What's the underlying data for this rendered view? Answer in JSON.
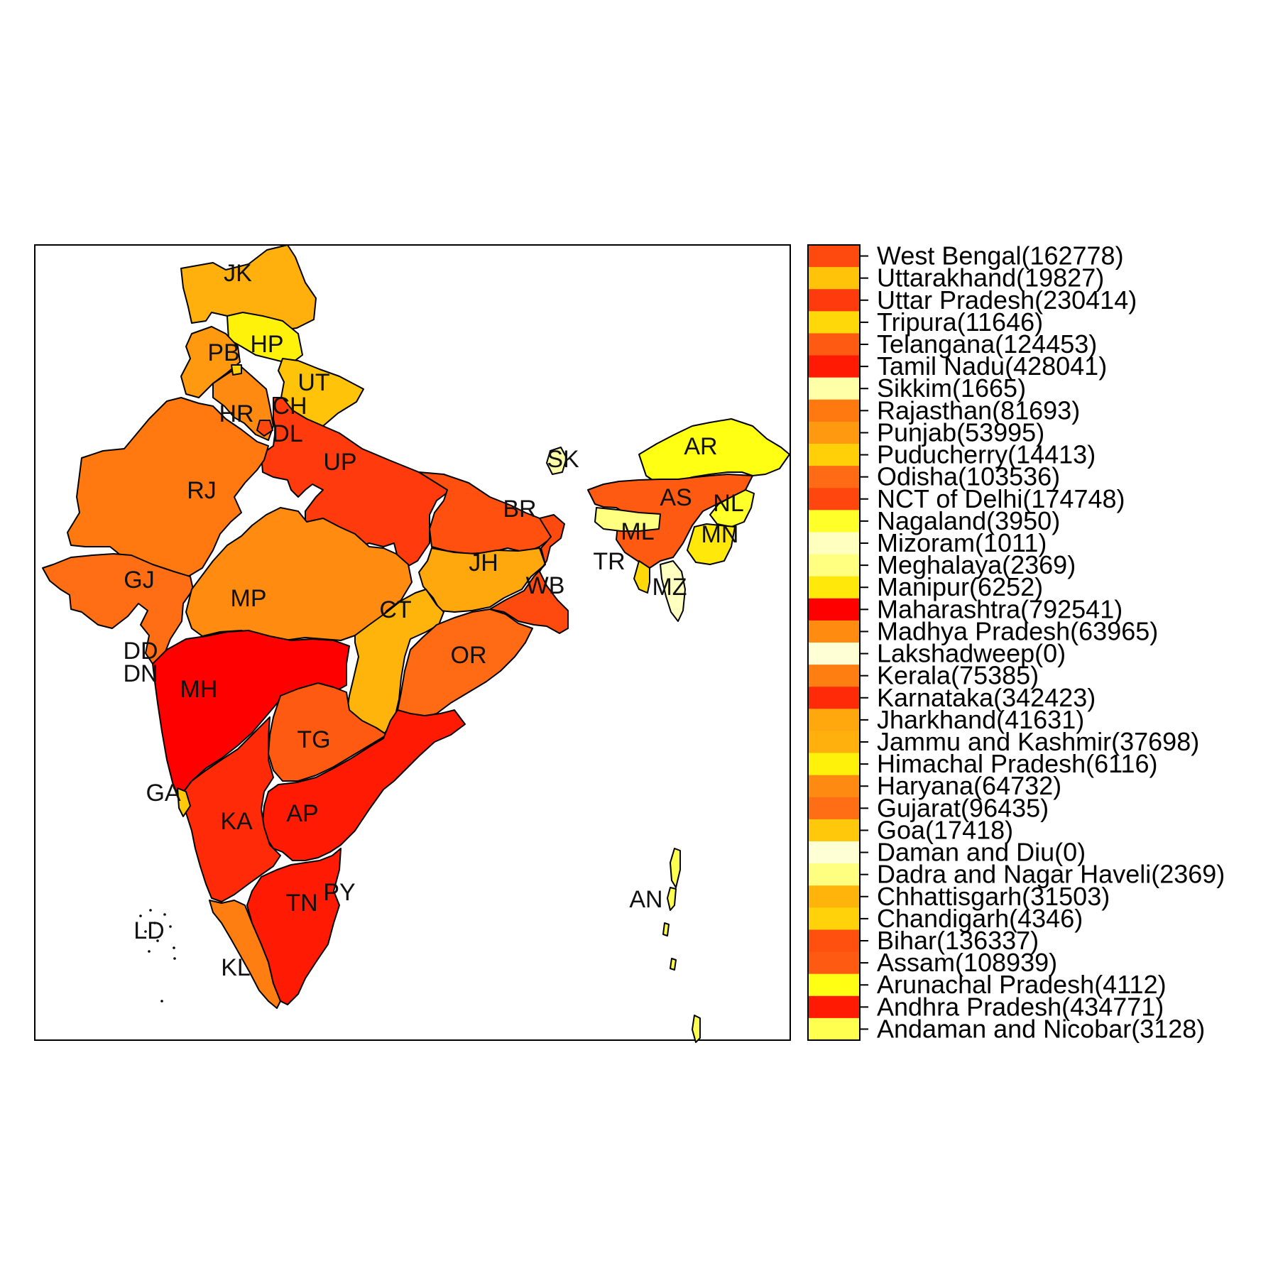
{
  "map": {
    "regions": [
      {
        "id": "WB",
        "name": "West Bengal",
        "value": 162778,
        "color": "#ff4a0f"
      },
      {
        "id": "UT",
        "name": "Uttarakhand",
        "value": 19827,
        "color": "#ffc40a"
      },
      {
        "id": "UP",
        "name": "Uttar Pradesh",
        "value": 230414,
        "color": "#ff3a0c"
      },
      {
        "id": "TR",
        "name": "Tripura",
        "value": 11646,
        "color": "#ffd809"
      },
      {
        "id": "TG",
        "name": "Telangana",
        "value": 124453,
        "color": "#ff5a12"
      },
      {
        "id": "TN",
        "name": "Tamil Nadu",
        "value": 428041,
        "color": "#ff1a04"
      },
      {
        "id": "SK",
        "name": "Sikkim",
        "value": 1665,
        "color": "#ffffa8"
      },
      {
        "id": "RJ",
        "name": "Rajasthan",
        "value": 81693,
        "color": "#ff7810"
      },
      {
        "id": "PB",
        "name": "Punjab",
        "value": 53995,
        "color": "#ff9a10"
      },
      {
        "id": "PY",
        "name": "Puducherry",
        "value": 14413,
        "color": "#ffd008"
      },
      {
        "id": "OR",
        "name": "Odisha",
        "value": 103536,
        "color": "#ff6a14"
      },
      {
        "id": "DL",
        "name": "NCT of Delhi",
        "value": 174748,
        "color": "#ff460e"
      },
      {
        "id": "NL",
        "name": "Nagaland",
        "value": 3950,
        "color": "#ffff2a"
      },
      {
        "id": "MZ",
        "name": "Mizoram",
        "value": 1011,
        "color": "#ffffc0"
      },
      {
        "id": "ML",
        "name": "Meghalaya",
        "value": 2369,
        "color": "#ffff80"
      },
      {
        "id": "MN",
        "name": "Manipur",
        "value": 6252,
        "color": "#ffe80a"
      },
      {
        "id": "MH",
        "name": "Maharashtra",
        "value": 792541,
        "color": "#ff0000"
      },
      {
        "id": "MP",
        "name": "Madhya Pradesh",
        "value": 63965,
        "color": "#ff8c10"
      },
      {
        "id": "LD",
        "name": "Lakshadweep",
        "value": 0,
        "color": "#ffffd6"
      },
      {
        "id": "KL",
        "name": "Kerala",
        "value": 75385,
        "color": "#ff7e12"
      },
      {
        "id": "KA",
        "name": "Karnataka",
        "value": 342423,
        "color": "#ff2a08"
      },
      {
        "id": "JH",
        "name": "Jharkhand",
        "value": 41631,
        "color": "#ffa80e"
      },
      {
        "id": "JK",
        "name": "Jammu and Kashmir",
        "value": 37698,
        "color": "#ffb00c"
      },
      {
        "id": "HP",
        "name": "Himachal Pradesh",
        "value": 6116,
        "color": "#fff20a"
      },
      {
        "id": "HR",
        "name": "Haryana",
        "value": 64732,
        "color": "#ff8a12"
      },
      {
        "id": "GJ",
        "name": "Gujarat",
        "value": 96435,
        "color": "#ff6e14"
      },
      {
        "id": "GA",
        "name": "Goa",
        "value": 17418,
        "color": "#ffc80a"
      },
      {
        "id": "DD",
        "name": "Daman and Diu",
        "value": 0,
        "color": "#ffffd6"
      },
      {
        "id": "DN",
        "name": "Dadra and Nagar Haveli",
        "value": 2369,
        "color": "#ffff80"
      },
      {
        "id": "CT",
        "name": "Chhattisgarh",
        "value": 31503,
        "color": "#ffb40c"
      },
      {
        "id": "CH",
        "name": "Chandigarh",
        "value": 4346,
        "color": "#ffd20a"
      },
      {
        "id": "BR",
        "name": "Bihar",
        "value": 136337,
        "color": "#ff5010"
      },
      {
        "id": "AS",
        "name": "Assam",
        "value": 108939,
        "color": "#ff5a12"
      },
      {
        "id": "AR",
        "name": "Arunachal Pradesh",
        "value": 4112,
        "color": "#ffff14"
      },
      {
        "id": "AP",
        "name": "Andhra Pradesh",
        "value": 434771,
        "color": "#ff1a04"
      },
      {
        "id": "AN",
        "name": "Andaman and Nicobar",
        "value": 3128,
        "color": "#ffff50"
      }
    ]
  },
  "legend": {
    "entries": [
      {
        "label": "West Bengal(162778)",
        "color": "#ff4a0f"
      },
      {
        "label": "Uttarakhand(19827)",
        "color": "#ffc40a"
      },
      {
        "label": "Uttar Pradesh(230414)",
        "color": "#ff3a0c"
      },
      {
        "label": "Tripura(11646)",
        "color": "#ffd809"
      },
      {
        "label": "Telangana(124453)",
        "color": "#ff5a12"
      },
      {
        "label": "Tamil Nadu(428041)",
        "color": "#ff1a04"
      },
      {
        "label": "Sikkim(1665)",
        "color": "#ffffa8"
      },
      {
        "label": "Rajasthan(81693)",
        "color": "#ff7810"
      },
      {
        "label": "Punjab(53995)",
        "color": "#ff9a10"
      },
      {
        "label": "Puducherry(14413)",
        "color": "#ffd008"
      },
      {
        "label": "Odisha(103536)",
        "color": "#ff6a14"
      },
      {
        "label": "NCT of Delhi(174748)",
        "color": "#ff460e"
      },
      {
        "label": "Nagaland(3950)",
        "color": "#ffff2a"
      },
      {
        "label": "Mizoram(1011)",
        "color": "#ffffc0"
      },
      {
        "label": "Meghalaya(2369)",
        "color": "#ffff80"
      },
      {
        "label": "Manipur(6252)",
        "color": "#ffe80a"
      },
      {
        "label": "Maharashtra(792541)",
        "color": "#ff0000"
      },
      {
        "label": "Madhya Pradesh(63965)",
        "color": "#ff8c10"
      },
      {
        "label": "Lakshadweep(0)",
        "color": "#ffffd6"
      },
      {
        "label": "Kerala(75385)",
        "color": "#ff7e12"
      },
      {
        "label": "Karnataka(342423)",
        "color": "#ff2a08"
      },
      {
        "label": "Jharkhand(41631)",
        "color": "#ffa80e"
      },
      {
        "label": "Jammu and Kashmir(37698)",
        "color": "#ffb00c"
      },
      {
        "label": "Himachal Pradesh(6116)",
        "color": "#fff20a"
      },
      {
        "label": "Haryana(64732)",
        "color": "#ff8a12"
      },
      {
        "label": "Gujarat(96435)",
        "color": "#ff6e14"
      },
      {
        "label": "Goa(17418)",
        "color": "#ffc80a"
      },
      {
        "label": "Daman and Diu(0)",
        "color": "#ffffd6"
      },
      {
        "label": "Dadra and Nagar Haveli(2369)",
        "color": "#ffff80"
      },
      {
        "label": "Chhattisgarh(31503)",
        "color": "#ffb40c"
      },
      {
        "label": "Chandigarh(4346)",
        "color": "#ffd20a"
      },
      {
        "label": "Bihar(136337)",
        "color": "#ff5010"
      },
      {
        "label": "Assam(108939)",
        "color": "#ff5a12"
      },
      {
        "label": "Arunachal Pradesh(4112)",
        "color": "#ffff14"
      },
      {
        "label": "Andhra Pradesh(434771)",
        "color": "#ff1a04"
      },
      {
        "label": "Andaman and Nicobar(3128)",
        "color": "#ffff50"
      }
    ]
  }
}
